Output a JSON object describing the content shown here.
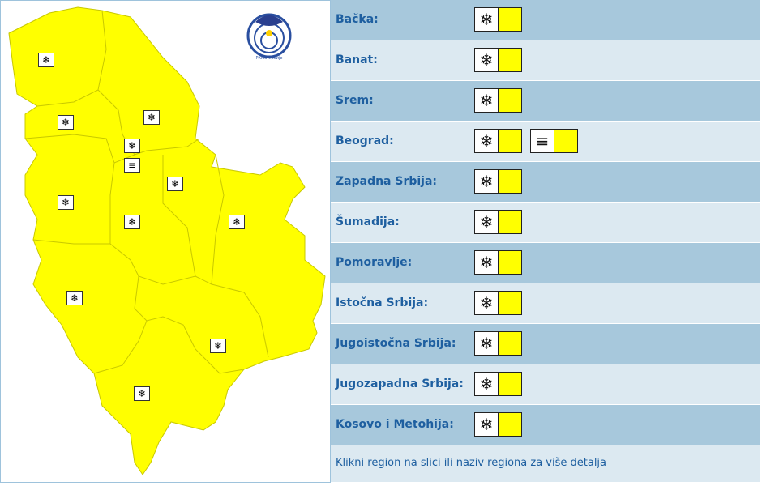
{
  "colors": {
    "warning_level": "#ffff00",
    "row_dark": "#a7c8dc",
    "row_light": "#dce9f1",
    "text": "#1e5fa0"
  },
  "regions": [
    {
      "name": "Bačka:",
      "warnings": [
        {
          "icon": "snow-ice-icon",
          "level": "yellow"
        }
      ]
    },
    {
      "name": "Banat:",
      "warnings": [
        {
          "icon": "snow-ice-icon",
          "level": "yellow"
        }
      ]
    },
    {
      "name": "Srem:",
      "warnings": [
        {
          "icon": "snow-ice-icon",
          "level": "yellow"
        }
      ]
    },
    {
      "name": "Beograd:",
      "warnings": [
        {
          "icon": "snow-ice-icon",
          "level": "yellow"
        },
        {
          "icon": "fog-icon",
          "level": "yellow"
        }
      ]
    },
    {
      "name": "Zapadna Srbija:",
      "warnings": [
        {
          "icon": "snow-ice-icon",
          "level": "yellow"
        }
      ]
    },
    {
      "name": "Šumadija:",
      "warnings": [
        {
          "icon": "snow-ice-icon",
          "level": "yellow"
        }
      ]
    },
    {
      "name": "Pomoravlje:",
      "warnings": [
        {
          "icon": "snow-ice-icon",
          "level": "yellow"
        }
      ]
    },
    {
      "name": "Istočna Srbija:",
      "warnings": [
        {
          "icon": "snow-ice-icon",
          "level": "yellow"
        }
      ]
    },
    {
      "name": "Jugoistočna Srbija:",
      "warnings": [
        {
          "icon": "snow-ice-icon",
          "level": "yellow"
        }
      ]
    },
    {
      "name": "Jugozapadna Srbija:",
      "warnings": [
        {
          "icon": "snow-ice-icon",
          "level": "yellow"
        }
      ]
    },
    {
      "name": "Kosovo i Metohija:",
      "warnings": [
        {
          "icon": "snow-ice-icon",
          "level": "yellow"
        }
      ]
    }
  ],
  "footer": "Klikni region na slici ili naziv regiona za više detalja",
  "logo_text": "РХМЗ Србије"
}
